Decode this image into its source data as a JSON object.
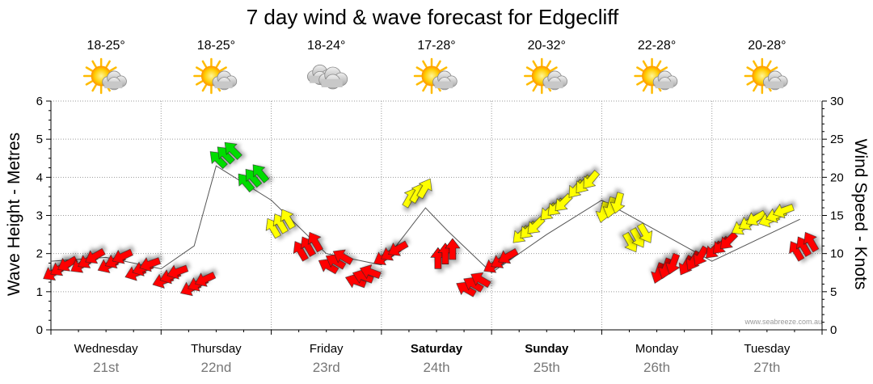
{
  "chart_data": {
    "type": "line",
    "title": "7 day wind & wave forecast for Edgecliff",
    "ylabel_left": "Wave Height - Metres",
    "ylabel_right": "Wind Speed - Knots",
    "ylim_left": [
      0,
      6
    ],
    "ylim_right": [
      0,
      30
    ],
    "yticks_left": [
      "0",
      "1",
      "2",
      "3",
      "4",
      "5",
      "6"
    ],
    "yticks_right": [
      "0",
      "5",
      "10",
      "15",
      "20",
      "25",
      "30"
    ],
    "grid": true,
    "credit": "www.seabreeze.com.au",
    "days": [
      {
        "name": "Wednesday",
        "date": "21st",
        "temp": "18-25°",
        "icon": "sun-cloud-icon",
        "bold": false
      },
      {
        "name": "Thursday",
        "date": "22nd",
        "temp": "18-25°",
        "icon": "sun-cloud-icon",
        "bold": false
      },
      {
        "name": "Friday",
        "date": "23rd",
        "temp": "18-24°",
        "icon": "cloud-icon",
        "bold": false
      },
      {
        "name": "Saturday",
        "date": "24th",
        "temp": "17-28°",
        "icon": "sun-cloud-icon",
        "bold": true
      },
      {
        "name": "Sunday",
        "date": "25th",
        "temp": "20-32°",
        "icon": "sun-cloud-icon",
        "bold": true
      },
      {
        "name": "Monday",
        "date": "26th",
        "temp": "22-28°",
        "icon": "sun-cloud-icon",
        "bold": false
      },
      {
        "name": "Tuesday",
        "date": "27th",
        "temp": "20-28°",
        "icon": "sun-cloud-icon",
        "bold": false
      }
    ],
    "wind_series": {
      "name": "Wind Speed",
      "unit": "knots",
      "x_days": [
        0.0,
        0.25,
        0.5,
        0.75,
        1.0,
        1.25,
        1.5,
        1.75,
        2.0,
        2.25,
        2.5,
        2.75,
        3.0,
        3.25,
        3.5,
        3.75,
        4.0,
        4.25,
        4.5,
        4.75,
        5.0,
        5.25,
        5.5,
        5.75,
        6.0,
        6.25,
        6.5,
        6.75
      ],
      "speed": [
        8,
        9,
        9,
        8,
        7,
        6,
        23,
        20,
        14,
        11,
        9,
        7,
        10,
        18,
        10,
        6,
        9,
        13,
        16,
        19,
        16,
        12,
        8,
        9,
        11,
        14,
        15,
        11
      ],
      "arrow_dir_deg": [
        240,
        240,
        245,
        250,
        250,
        245,
        315,
        320,
        330,
        330,
        300,
        290,
        240,
        30,
        0,
        300,
        240,
        225,
        225,
        220,
        195,
        150,
        200,
        210,
        225,
        240,
        250,
        330
      ],
      "colors": {
        "light": "#ff0000",
        "moderate": "#ffff00",
        "strong": "#00dd00"
      },
      "thresholds": {
        "moderate_from": 12,
        "strong_from": 20
      }
    },
    "wave_series": {
      "name": "Wave Height",
      "unit": "metres",
      "x_days": [
        0,
        0.5,
        1,
        1.3,
        1.5,
        2,
        2.5,
        3,
        3.4,
        3.6,
        4,
        4.5,
        5,
        5.5,
        6,
        6.8
      ],
      "height": [
        1.8,
        1.9,
        1.6,
        2.2,
        4.3,
        3.4,
        2.0,
        1.7,
        3.2,
        2.6,
        1.5,
        2.5,
        3.4,
        2.6,
        1.8,
        2.9
      ]
    }
  }
}
